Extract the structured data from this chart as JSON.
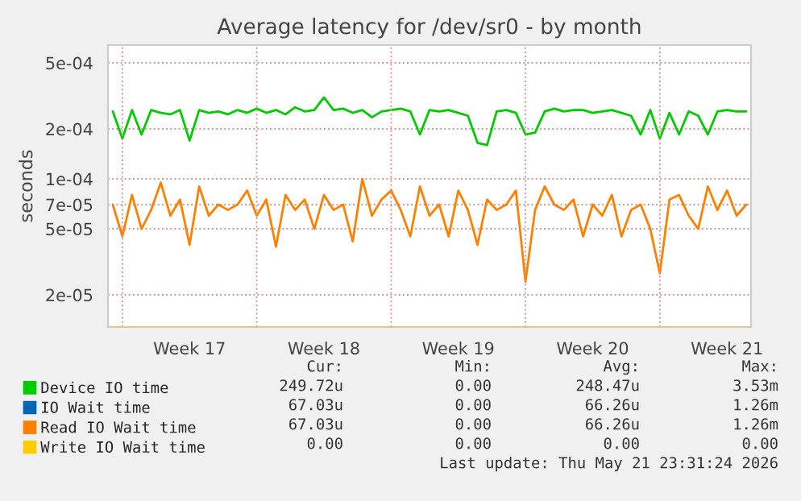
{
  "chart_data": {
    "type": "line",
    "title": "Average latency for /dev/sr0 - by month",
    "ylabel": "seconds",
    "categories": [
      null,
      null,
      null,
      null,
      null,
      null,
      null,
      null,
      "Week 17",
      null,
      null,
      null,
      null,
      null,
      null,
      null,
      null,
      null,
      null,
      null,
      null,
      null,
      "Week 18",
      null,
      null,
      null,
      null,
      null,
      null,
      null,
      null,
      null,
      null,
      null,
      null,
      null,
      "Week 19",
      null,
      null,
      null,
      null,
      null,
      null,
      null,
      null,
      null,
      null,
      null,
      null,
      null,
      "Week 20",
      null,
      null,
      null,
      null,
      null,
      null,
      null,
      null,
      null,
      null,
      null,
      null,
      null,
      "Week 21",
      null,
      null
    ],
    "series": [
      {
        "name": "Device IO time",
        "color": "#00cc00",
        "values": [
          0.000255,
          0.000175,
          0.00026,
          0.000185,
          0.00026,
          0.00025,
          0.000245,
          0.00026,
          0.00017,
          0.00026,
          0.00025,
          0.000255,
          0.000245,
          0.00026,
          0.00025,
          0.000265,
          0.00025,
          0.00026,
          0.000245,
          0.00027,
          0.000255,
          0.00026,
          0.00031,
          0.00026,
          0.000265,
          0.00025,
          0.00026,
          0.000235,
          0.000255,
          0.00026,
          0.000265,
          0.000255,
          0.000185,
          0.00026,
          0.000255,
          0.00026,
          0.00025,
          0.00024,
          0.000165,
          0.00016,
          0.000255,
          0.00026,
          0.00025,
          0.000185,
          0.00019,
          0.000255,
          0.000265,
          0.000255,
          0.00026,
          0.00026,
          0.00025,
          0.000255,
          0.00026,
          0.00025,
          0.00024,
          0.000185,
          0.00026,
          0.000175,
          0.00025,
          0.000185,
          0.000255,
          0.00024,
          0.000185,
          0.000255,
          0.00026,
          0.000255,
          0.000255
        ]
      },
      {
        "name": "IO Wait time",
        "color": "#0066b3",
        "values": [
          null,
          null,
          null,
          null,
          null,
          null,
          null,
          null,
          null,
          null,
          null,
          null,
          null,
          null,
          null,
          null,
          null,
          null,
          null,
          null,
          null,
          null,
          null,
          null,
          null,
          null,
          null,
          null,
          null,
          null,
          null,
          null,
          null,
          null,
          null,
          null,
          null,
          null,
          null,
          null,
          null,
          null,
          null,
          null,
          null,
          null,
          null,
          null,
          null,
          null,
          null,
          null,
          null,
          null,
          null,
          null,
          null,
          null,
          null,
          null,
          null,
          null,
          null,
          null,
          null,
          null,
          null
        ]
      },
      {
        "name": "Read IO Wait time",
        "color": "#ff8000",
        "values": [
          7e-05,
          4.5e-05,
          8e-05,
          5e-05,
          6.5e-05,
          9.5e-05,
          6e-05,
          7.5e-05,
          4e-05,
          9e-05,
          6e-05,
          7e-05,
          6.5e-05,
          7e-05,
          8.5e-05,
          6e-05,
          7.5e-05,
          3.9e-05,
          8e-05,
          6.5e-05,
          7.5e-05,
          5e-05,
          8e-05,
          6.5e-05,
          7e-05,
          4.2e-05,
          0.0001,
          6e-05,
          7.5e-05,
          8.5e-05,
          6.5e-05,
          4.5e-05,
          9e-05,
          6e-05,
          7e-05,
          4.5e-05,
          8.5e-05,
          6.5e-05,
          4e-05,
          7.5e-05,
          6.5e-05,
          7e-05,
          8.5e-05,
          2.4e-05,
          6.5e-05,
          9e-05,
          7e-05,
          6.5e-05,
          7.5e-05,
          4.5e-05,
          7e-05,
          6e-05,
          8e-05,
          4.5e-05,
          6.5e-05,
          7e-05,
          5e-05,
          2.7e-05,
          7.5e-05,
          8e-05,
          6e-05,
          5e-05,
          9e-05,
          6.5e-05,
          8.5e-05,
          6e-05,
          7e-05
        ]
      },
      {
        "name": "Write IO Wait time",
        "color": "#ffcc00",
        "values": [
          null,
          null,
          null,
          null,
          null,
          null,
          null,
          null,
          null,
          null,
          null,
          null,
          null,
          null,
          null,
          null,
          null,
          null,
          null,
          null,
          null,
          null,
          null,
          null,
          null,
          null,
          null,
          null,
          null,
          null,
          null,
          null,
          null,
          null,
          null,
          null,
          null,
          null,
          null,
          null,
          null,
          null,
          null,
          null,
          null,
          null,
          null,
          null,
          null,
          null,
          null,
          null,
          null,
          null,
          null,
          null,
          null,
          null,
          null,
          null,
          null,
          null,
          null,
          null,
          null,
          null,
          null
        ]
      }
    ],
    "log": "y",
    "ylim": [
      1.28e-05,
      0.00064
    ],
    "yticks": [
      {
        "value": 2e-05,
        "label": "2e-05"
      },
      {
        "value": 5e-05,
        "label": "5e-05"
      },
      {
        "value": 7e-05,
        "label": "7e-05"
      },
      {
        "value": 0.0001,
        "label": "1e-04"
      },
      {
        "value": 0.0002,
        "label": "2e-04"
      },
      {
        "value": 0.0005,
        "label": "5e-04"
      }
    ],
    "grid": true,
    "legend": "bottom",
    "annotations": [
      "Cur:",
      "Min:",
      "Avg:",
      "Max:",
      "249.72u",
      "0.00",
      "248.47u",
      "3.53m",
      "67.03u",
      "0.00",
      "66.26u",
      "1.26m",
      "67.03u",
      "0.00",
      "66.26u",
      "1.26m",
      "0.00",
      "0.00",
      "0.00",
      "0.00",
      "Last update: Thu May 21 23:31:24 2026"
    ]
  }
}
